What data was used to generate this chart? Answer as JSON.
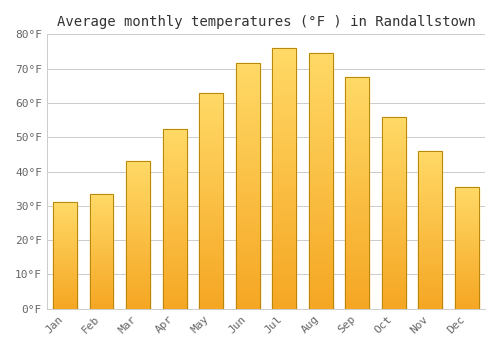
{
  "title": "Average monthly temperatures (°F ) in Randallstown",
  "months": [
    "Jan",
    "Feb",
    "Mar",
    "Apr",
    "May",
    "Jun",
    "Jul",
    "Aug",
    "Sep",
    "Oct",
    "Nov",
    "Dec"
  ],
  "values": [
    31,
    33.5,
    43,
    52.5,
    63,
    71.5,
    76,
    74.5,
    67.5,
    56,
    46,
    35.5
  ],
  "bar_color_bottom": "#F5A623",
  "bar_color_top": "#FFD966",
  "bar_edge_color": "#B8860B",
  "ylim": [
    0,
    80
  ],
  "yticks": [
    0,
    10,
    20,
    30,
    40,
    50,
    60,
    70,
    80
  ],
  "ytick_labels": [
    "0°F",
    "10°F",
    "20°F",
    "30°F",
    "40°F",
    "50°F",
    "60°F",
    "70°F",
    "80°F"
  ],
  "background_color": "#FFFFFF",
  "grid_color": "#CCCCCC",
  "title_fontsize": 10,
  "tick_fontsize": 8,
  "font_family": "monospace"
}
